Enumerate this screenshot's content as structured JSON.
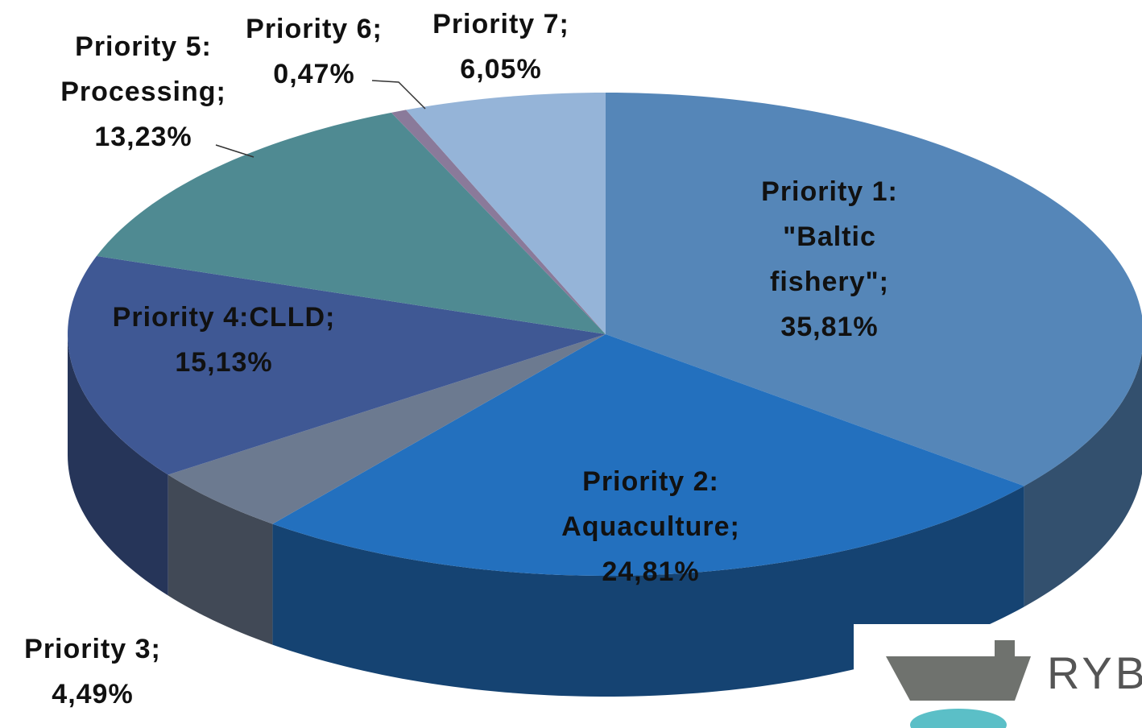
{
  "chart_data": {
    "type": "pie3d",
    "categories": [
      "Priority 1: \"Baltic fishery\";",
      "Priority 2: Aquaculture;",
      "Priority 3;",
      "Priority 4:CLLD;",
      "Priority 5: Processing;",
      "Priority 6;",
      "Priority 7;"
    ],
    "values": [
      35.81,
      24.81,
      4.49,
      15.13,
      13.23,
      0.47,
      6.05
    ],
    "value_labels": [
      "35,81%",
      "24,81%",
      "4,49%",
      "15,13%",
      "13,23%",
      "0,47%",
      "6,05%"
    ],
    "colors": [
      "#5586b8",
      "#2370be",
      "#6c7a90",
      "#3f5894",
      "#4f8a92",
      "#8a7a9a",
      "#95b4d8"
    ],
    "logo_text": "RYB"
  }
}
